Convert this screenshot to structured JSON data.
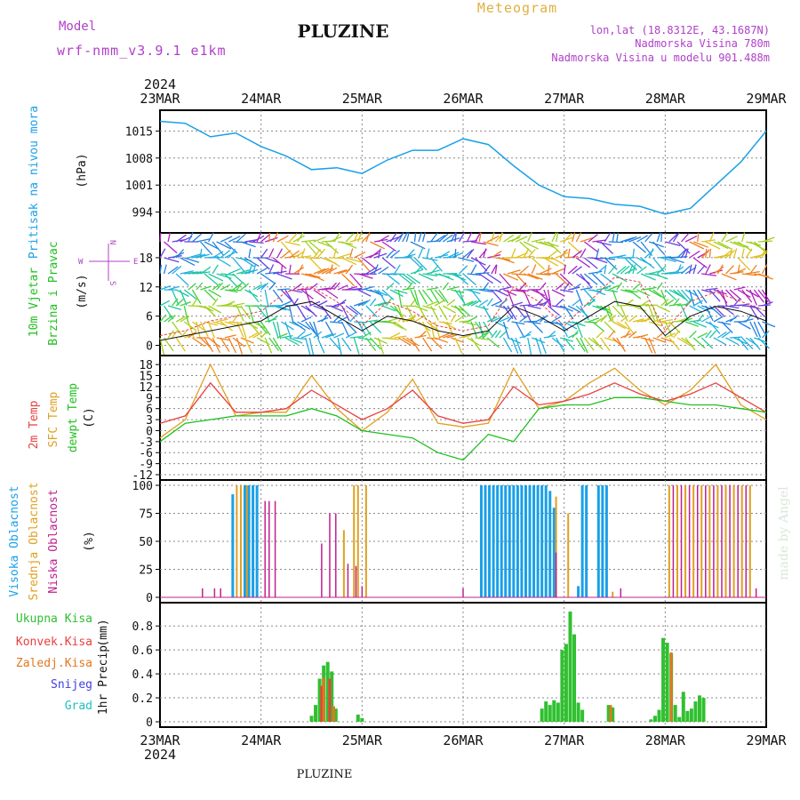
{
  "header": {
    "model_label": "Model",
    "model_name": "wrf-nmm_v3.9.1 e1km",
    "location": "PLUZINE",
    "meteogram_label": "Meteogram",
    "lonlat": "lon,lat (18.8312E, 43.1687N)",
    "elevation": "Nadmorska Visina 780m",
    "model_elevation": "Nadmorska Visina u modelu 901.488m",
    "footer_location": "PLUZINE",
    "watermark": "made by Angel"
  },
  "time_axis": {
    "year_top": "2024",
    "year_bottom": "2024",
    "days": [
      "23MAR",
      "24MAR",
      "25MAR",
      "26MAR",
      "27MAR",
      "28MAR",
      "29MAR"
    ]
  },
  "colors": {
    "pressure": "#1aa0e8",
    "temp2m": "#e84040",
    "sfc": "#e0a020",
    "dewpt": "#20c020",
    "low_cloud": "#c02090",
    "mid_cloud": "#e0a020",
    "high_cloud": "#1aa0e8",
    "precip_total": "#30c030",
    "precip_conv": "#e84040",
    "precip_frz": "#e07820",
    "snow": "#4040e0",
    "graupel": "#20c0c0",
    "wind_label": "#20c020",
    "axis_label_purple": "#b040c8"
  },
  "chart_data": [
    {
      "id": "pressure",
      "type": "line",
      "title": "Pritisak na nivou mora",
      "ylabel": "Pritisak na nivou mora",
      "units": "(hPa)",
      "y_ticks": [
        "1015",
        "1008",
        "1001",
        "994"
      ],
      "ylim": [
        990,
        1019
      ],
      "x": [
        0,
        0.25,
        0.5,
        0.75,
        1,
        1.25,
        1.5,
        1.75,
        2,
        2.25,
        2.5,
        2.75,
        3,
        3.25,
        3.5,
        3.75,
        4,
        4.25,
        4.5,
        4.75,
        5,
        5.25,
        5.5,
        5.75,
        6
      ],
      "series": [
        {
          "values": [
            1017.5,
            1017,
            1013.5,
            1014.5,
            1011,
            1008.5,
            1005,
            1005.5,
            1004,
            1007.5,
            1010,
            1010,
            1013,
            1011.5,
            1006,
            1001,
            998,
            997.5,
            996,
            995.5,
            993.5,
            995,
            1001,
            1007,
            1015
          ]
        }
      ]
    },
    {
      "id": "wind",
      "type": "line",
      "ylabel_1": "10m Vjetar",
      "ylabel_2": "Brzina i Pravac",
      "units": "(m/s)",
      "compass_n": "N",
      "compass_s": "S",
      "compass_e": "E",
      "compass_w": "W",
      "y_ticks": [
        "18",
        "12",
        "6",
        "0"
      ],
      "ylim": [
        -1,
        22
      ],
      "x": [
        0,
        0.25,
        0.5,
        0.75,
        1,
        1.25,
        1.5,
        1.75,
        2,
        2.25,
        2.5,
        2.75,
        3,
        3.25,
        3.5,
        3.75,
        4,
        4.25,
        4.5,
        4.75,
        5,
        5.25,
        5.5,
        5.75,
        6
      ],
      "series": [
        {
          "values": [
            1,
            2,
            3,
            4,
            5,
            8,
            9,
            6,
            3,
            6,
            5,
            3,
            2,
            3,
            8,
            6,
            3,
            6,
            9,
            8,
            2,
            6,
            8,
            7,
            5
          ]
        },
        {
          "values": [
            2,
            3,
            5,
            6,
            7,
            11,
            12,
            9,
            4,
            9,
            7,
            4,
            3,
            4,
            12,
            9,
            4,
            9,
            14,
            13,
            3,
            9,
            11,
            9,
            7
          ]
        }
      ]
    },
    {
      "id": "temperature",
      "type": "line",
      "ylabel_1": "2m Temp",
      "ylabel_2": "SFC Temp",
      "ylabel_3": "dewpt Temp",
      "units": "(C)",
      "y_ticks": [
        "18",
        "15",
        "12",
        "9",
        "6",
        "3",
        "0",
        "-3",
        "-6",
        "-9",
        "-12"
      ],
      "ylim": [
        -12,
        19
      ],
      "x": [
        0,
        0.25,
        0.5,
        0.75,
        1,
        1.25,
        1.5,
        1.75,
        2,
        2.25,
        2.5,
        2.75,
        3,
        3.25,
        3.5,
        3.75,
        4,
        4.25,
        4.5,
        4.75,
        5,
        5.25,
        5.5,
        5.75,
        6
      ],
      "series": [
        {
          "name": "2m Temp",
          "values": [
            2,
            4,
            13,
            5,
            5,
            6,
            11,
            7,
            3,
            6,
            11,
            4,
            2,
            3,
            12,
            7,
            8,
            10,
            13,
            10,
            8,
            10,
            13,
            9,
            5
          ]
        },
        {
          "name": "SFC Temp",
          "values": [
            -2,
            3,
            18,
            4,
            5,
            5,
            15,
            6,
            0,
            5,
            14,
            2,
            1,
            2,
            17,
            6,
            8,
            13,
            17,
            11,
            7,
            11,
            18,
            7,
            3
          ]
        },
        {
          "name": "dewpt Temp",
          "values": [
            -3,
            2,
            3,
            4,
            4,
            4,
            6,
            4,
            0,
            -1,
            -2,
            -6,
            -8,
            -1,
            -3,
            6,
            7,
            7,
            9,
            9,
            8,
            7,
            7,
            6,
            5
          ]
        }
      ]
    },
    {
      "id": "clouds",
      "type": "bar",
      "ylabel_1": "Visoka Oblacnost",
      "ylabel_2": "Srednja Oblacnost",
      "ylabel_3": "Niska Oblacnost",
      "units": "(%)",
      "y_ticks": [
        "100",
        "75",
        "50",
        "25",
        "0"
      ],
      "ylim": [
        0,
        100
      ],
      "series": [
        {
          "name": "Visoka Oblacnost",
          "bars": [
            [
              0.72,
              92
            ],
            [
              0.84,
              100
            ],
            [
              0.88,
              100
            ],
            [
              0.92,
              100
            ],
            [
              0.96,
              100
            ],
            [
              3.18,
              100
            ],
            [
              3.22,
              100
            ],
            [
              3.26,
              100
            ],
            [
              3.3,
              100
            ],
            [
              3.34,
              100
            ],
            [
              3.38,
              100
            ],
            [
              3.42,
              100
            ],
            [
              3.46,
              100
            ],
            [
              3.5,
              100
            ],
            [
              3.54,
              100
            ],
            [
              3.58,
              100
            ],
            [
              3.62,
              100
            ],
            [
              3.66,
              100
            ],
            [
              3.7,
              100
            ],
            [
              3.74,
              100
            ],
            [
              3.78,
              100
            ],
            [
              3.82,
              100
            ],
            [
              3.86,
              95
            ],
            [
              3.9,
              80
            ],
            [
              4.14,
              10
            ],
            [
              4.18,
              100
            ],
            [
              4.22,
              100
            ],
            [
              4.34,
              100
            ],
            [
              4.38,
              100
            ],
            [
              4.42,
              100
            ]
          ]
        },
        {
          "name": "Srednja Oblacnost",
          "bars": [
            [
              0.76,
              100
            ],
            [
              0.8,
              100
            ],
            [
              0.86,
              100
            ],
            [
              1.82,
              60
            ],
            [
              1.92,
              100
            ],
            [
              1.96,
              100
            ],
            [
              2.04,
              100
            ],
            [
              3.92,
              90
            ],
            [
              4.04,
              75
            ],
            [
              4.48,
              5
            ],
            [
              5.04,
              100
            ],
            [
              5.12,
              100
            ],
            [
              5.2,
              100
            ],
            [
              5.28,
              100
            ],
            [
              5.36,
              100
            ],
            [
              5.44,
              100
            ],
            [
              5.52,
              100
            ],
            [
              5.6,
              100
            ],
            [
              5.68,
              100
            ],
            [
              5.76,
              100
            ],
            [
              5.84,
              100
            ]
          ]
        },
        {
          "name": "Niska Oblacnost",
          "bars": [
            [
              0.42,
              8
            ],
            [
              0.54,
              8
            ],
            [
              0.6,
              8
            ],
            [
              1.04,
              86
            ],
            [
              1.08,
              86
            ],
            [
              1.14,
              86
            ],
            [
              1.6,
              48
            ],
            [
              1.68,
              75
            ],
            [
              1.74,
              75
            ],
            [
              1.86,
              30
            ],
            [
              1.94,
              28
            ],
            [
              2.0,
              10
            ],
            [
              3.0,
              8
            ],
            [
              3.92,
              40
            ],
            [
              4.56,
              8
            ],
            [
              5.08,
              100
            ],
            [
              5.16,
              100
            ],
            [
              5.24,
              100
            ],
            [
              5.32,
              100
            ],
            [
              5.4,
              100
            ],
            [
              5.48,
              100
            ],
            [
              5.56,
              100
            ],
            [
              5.64,
              100
            ],
            [
              5.72,
              100
            ],
            [
              5.8,
              100
            ],
            [
              5.9,
              8
            ]
          ]
        }
      ]
    },
    {
      "id": "precip",
      "type": "bar",
      "ylabel": "1hr Precip",
      "units": "(mm)",
      "legend": [
        "Ukupna Kisa",
        "Konvek.Kisa",
        "Zaledj.Kisa",
        "Snijeg",
        "Grad"
      ],
      "y_ticks": [
        "0.8",
        "0.6",
        "0.4",
        "0.2",
        "0"
      ],
      "ylim": [
        0,
        0.95
      ],
      "series": [
        {
          "name": "Ukupna Kisa",
          "bars": [
            [
              1.5,
              0.05
            ],
            [
              1.54,
              0.14
            ],
            [
              1.58,
              0.36
            ],
            [
              1.62,
              0.47
            ],
            [
              1.66,
              0.5
            ],
            [
              1.7,
              0.42
            ],
            [
              1.74,
              0.11
            ],
            [
              1.96,
              0.06
            ],
            [
              2.0,
              0.03
            ],
            [
              3.78,
              0.11
            ],
            [
              3.82,
              0.17
            ],
            [
              3.86,
              0.14
            ],
            [
              3.9,
              0.18
            ],
            [
              3.94,
              0.16
            ],
            [
              3.98,
              0.6
            ],
            [
              4.02,
              0.65
            ],
            [
              4.06,
              0.92
            ],
            [
              4.1,
              0.73
            ],
            [
              4.14,
              0.16
            ],
            [
              4.18,
              0.1
            ],
            [
              4.44,
              0.14
            ],
            [
              4.48,
              0.12
            ],
            [
              4.86,
              0.02
            ],
            [
              4.9,
              0.05
            ],
            [
              4.94,
              0.1
            ],
            [
              4.98,
              0.7
            ],
            [
              5.02,
              0.66
            ],
            [
              5.06,
              0.57
            ],
            [
              5.1,
              0.14
            ],
            [
              5.14,
              0.04
            ],
            [
              5.18,
              0.25
            ],
            [
              5.22,
              0.09
            ],
            [
              5.26,
              0.11
            ],
            [
              5.3,
              0.17
            ],
            [
              5.34,
              0.22
            ],
            [
              5.38,
              0.2
            ]
          ]
        },
        {
          "name": "Konvek.Kisa",
          "bars": [
            [
              1.6,
              0.3
            ],
            [
              1.68,
              0.36
            ],
            [
              1.72,
              0.08
            ]
          ]
        },
        {
          "name": "Zaledj.Kisa",
          "bars": [
            [
              1.62,
              0.37
            ],
            [
              1.72,
              0.13
            ],
            [
              4.46,
              0.14
            ],
            [
              5.06,
              0.58
            ]
          ]
        }
      ]
    }
  ]
}
